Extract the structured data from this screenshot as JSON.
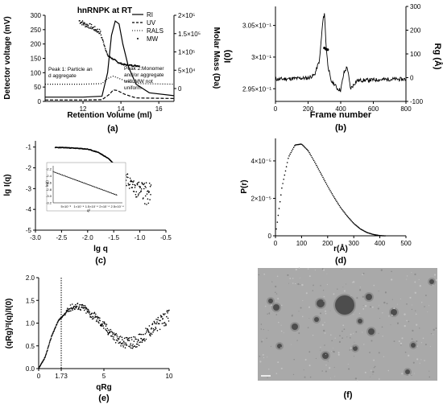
{
  "figure": {
    "panel_labels": [
      "(a)",
      "(b)",
      "(c)",
      "(d)",
      "(e)",
      "(f)"
    ],
    "colors": {
      "ink": "#000000",
      "micrograph_bg": "#a9a9a9",
      "particle": "#3a3a3a"
    }
  },
  "chart_data": [
    {
      "panel": "a",
      "type": "line",
      "title": "hnRNPK at RT",
      "xlabel": "Retention Volume (ml)",
      "ylabel": "Detector voltage (mV)",
      "y2label": "Molar Mass (Da)",
      "xlim": [
        10,
        16.8
      ],
      "ylim": [
        0,
        300
      ],
      "y2lim": [
        0,
        200000
      ],
      "xticks": [
        "12",
        "14",
        "16"
      ],
      "yticks": [
        "0",
        "50",
        "100",
        "150",
        "200",
        "250",
        "300"
      ],
      "y2ticks": [
        "0",
        "5×10⁴",
        "1×10⁵",
        "1.5×10⁵",
        "2×10⁵"
      ],
      "legend": [
        "RI",
        "UV",
        "RALS",
        "MW"
      ],
      "legend_position": "top-right",
      "annotations": [
        "Peak 1: Particle and aggregate",
        "Peak 2:Monomer and/or aggregate with MW not uniform"
      ],
      "series": [
        {
          "name": "RI",
          "style": "solid",
          "x": [
            10,
            12,
            13,
            13.3,
            13.5,
            13.7,
            13.9,
            14.1,
            14.4,
            14.8,
            15.5,
            16.8
          ],
          "y": [
            15,
            15,
            18,
            100,
            230,
            280,
            270,
            200,
            120,
            60,
            30,
            20
          ]
        },
        {
          "name": "UV",
          "style": "dashed",
          "x": [
            10,
            12,
            13,
            13.4,
            13.6,
            13.8,
            14.2,
            14.8,
            16.8
          ],
          "y": [
            5,
            5,
            6,
            25,
            40,
            38,
            25,
            12,
            10
          ]
        },
        {
          "name": "RALS",
          "style": "dotted",
          "x": [
            10,
            12,
            13,
            13.3,
            13.6,
            13.9,
            14.3,
            15,
            16.8
          ],
          "y": [
            60,
            60,
            62,
            80,
            88,
            80,
            70,
            62,
            60
          ]
        },
        {
          "name": "MW",
          "style": "points",
          "axis": "y2",
          "x": [
            11.8,
            12.1,
            12.4,
            12.7,
            12.9,
            13.3,
            13.6,
            13.9,
            14.2,
            14.6,
            15.0
          ],
          "y": [
            185000,
            175000,
            170000,
            160000,
            155000,
            90000,
            80000,
            70000,
            65000,
            63000,
            62000
          ]
        }
      ]
    },
    {
      "panel": "b",
      "type": "line",
      "xlabel": "Frame number",
      "ylabel": "I(0)",
      "y2label": "Rg (Å)",
      "xlim": [
        0,
        800
      ],
      "ylim": [
        0.293,
        0.308
      ],
      "y2lim": [
        -100,
        300
      ],
      "xticks": [
        "0",
        "200",
        "400",
        "600",
        "800"
      ],
      "yticks": [
        "2.95×10⁻¹",
        "3×10⁻¹",
        "3.05×10⁻¹"
      ],
      "y2ticks": [
        "-100",
        "0",
        "100",
        "200",
        "300"
      ],
      "series": [
        {
          "name": "",
          "style": "solid",
          "x": [
            0,
            100,
            200,
            240,
            270,
            290,
            300,
            310,
            320,
            340,
            360,
            380,
            400,
            420,
            440,
            460,
            500,
            600,
            700,
            800
          ],
          "y": [
            0.2965,
            0.2966,
            0.2967,
            0.2972,
            0.2995,
            0.3055,
            0.307,
            0.302,
            0.299,
            0.2962,
            0.2958,
            0.295,
            0.2948,
            0.2975,
            0.2985,
            0.295,
            0.2963,
            0.2964,
            0.2965,
            0.2965
          ]
        },
        {
          "name": "",
          "style": "points",
          "axis": "y2",
          "x": [
            300,
            310,
            320
          ],
          "y": [
            125,
            120,
            118
          ]
        }
      ]
    },
    {
      "panel": "c",
      "type": "scatter",
      "xlabel": "lg q",
      "ylabel": "lg I(q)",
      "xlim": [
        -3.0,
        -0.5
      ],
      "ylim": [
        -5,
        -0.7
      ],
      "xticks": [
        "-3.0",
        "-2.5",
        "-2.0",
        "-1.5",
        "-1.0",
        "-0.5"
      ],
      "yticks": [
        "-5",
        "-4",
        "-3",
        "-2",
        "-1"
      ],
      "series": [
        {
          "name": "",
          "x": [
            -2.6,
            -2.4,
            -2.2,
            -2.0,
            -1.8,
            -1.6,
            -1.5,
            -1.4,
            -1.3,
            -1.2,
            -1.1,
            -1.0,
            -0.9,
            -0.8
          ],
          "y": [
            -1.02,
            -1.03,
            -1.06,
            -1.1,
            -1.25,
            -1.55,
            -1.8,
            -2.1,
            -2.4,
            -2.7,
            -2.95,
            -3.1,
            -3.2,
            -3.3
          ]
        }
      ],
      "inset": {
        "xlabel": "q²",
        "ylabel": "ln(I)",
        "xlim": [
          0,
          0.00027
        ],
        "ylim": [
          -3.2,
          -2.1
        ],
        "xticks": [
          "5×10⁻⁵",
          "1×10⁻⁴",
          "1.5×10⁻⁴",
          "2×10⁻⁴",
          "2.5×10⁻⁴"
        ],
        "yticks": [
          "-2.2",
          "-2.4",
          "-2.6",
          "-2.8",
          "-3.0",
          "-3.2"
        ],
        "x": [
          0,
          5e-05,
          0.0001,
          0.00015,
          0.0002,
          0.00025
        ],
        "y": [
          -2.28,
          -2.42,
          -2.56,
          -2.7,
          -2.84,
          -2.98
        ]
      }
    },
    {
      "panel": "d",
      "type": "scatter",
      "xlabel": "r(Å)",
      "ylabel": "P(r)",
      "xlim": [
        0,
        500
      ],
      "ylim": [
        0,
        5.2e-05
      ],
      "xticks": [
        "0",
        "100",
        "200",
        "300",
        "400",
        "500"
      ],
      "yticks": [
        "0",
        "2×10⁻⁵",
        "4×10⁻⁵"
      ],
      "series": [
        {
          "name": "",
          "x": [
            0,
            25,
            50,
            75,
            100,
            125,
            150,
            175,
            200,
            225,
            250,
            275,
            300,
            325,
            350,
            375,
            400,
            420
          ],
          "y": [
            0,
            2.6e-05,
            4.2e-05,
            4.85e-05,
            4.9e-05,
            4.55e-05,
            3.95e-05,
            3.3e-05,
            2.65e-05,
            2.05e-05,
            1.5e-05,
            1.05e-05,
            6.6e-06,
            3.7e-06,
            1.8e-06,
            7e-07,
            1e-07,
            0
          ]
        }
      ]
    },
    {
      "panel": "e",
      "type": "scatter",
      "xlabel": "qRg",
      "ylabel": "(qRg)²I(q)/I(0)",
      "xlim": [
        0,
        10
      ],
      "ylim": [
        0,
        2.0
      ],
      "xticks": [
        "0",
        "1.73",
        "5",
        "10"
      ],
      "yticks": [
        "0.0",
        "0.5",
        "1.0",
        "1.5",
        "2.0"
      ],
      "vline_x": 1.73,
      "series": [
        {
          "name": "",
          "x": [
            0,
            0.5,
            1.0,
            1.5,
            1.73,
            2.0,
            2.5,
            3.0,
            3.5,
            4.0,
            4.5,
            5.0,
            5.5,
            6.0,
            6.5,
            7.0,
            7.5,
            8.0,
            8.5,
            9.0,
            9.5,
            10.0
          ],
          "y": [
            0,
            0.25,
            0.72,
            1.05,
            1.12,
            1.2,
            1.35,
            1.38,
            1.33,
            1.2,
            1.1,
            0.95,
            0.8,
            0.65,
            0.58,
            0.55,
            0.6,
            0.7,
            0.85,
            0.95,
            1.05,
            1.15
          ]
        }
      ]
    }
  ],
  "micrograph": {
    "panel": "f"
  }
}
